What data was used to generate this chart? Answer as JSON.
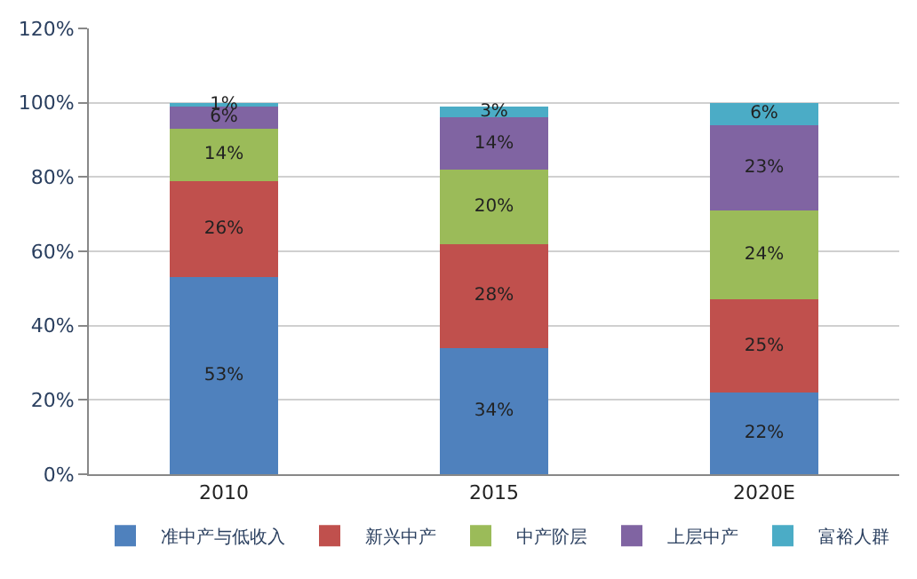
{
  "chart_data": {
    "type": "bar",
    "stacked": true,
    "categories": [
      "2010",
      "2015",
      "2020E"
    ],
    "series": [
      {
        "name": "准中产与低收入",
        "color": "#4f81bd",
        "values": [
          53,
          34,
          22
        ],
        "value_labels": [
          "53%",
          "34%",
          "22%"
        ]
      },
      {
        "name": "新兴中产",
        "color": "#c0504d",
        "values": [
          26,
          28,
          25
        ],
        "value_labels": [
          "26%",
          "28%",
          "25%"
        ]
      },
      {
        "name": "中产阶层",
        "color": "#9bbb59",
        "values": [
          14,
          20,
          24
        ],
        "value_labels": [
          "14%",
          "20%",
          "24%"
        ]
      },
      {
        "name": "上层中产",
        "color": "#8064a2",
        "values": [
          6,
          14,
          23
        ],
        "value_labels": [
          "6%",
          "14%",
          "23%"
        ]
      },
      {
        "name": "富裕人群",
        "color": "#4bacc6",
        "values": [
          1,
          3,
          6
        ],
        "value_labels": [
          "1%",
          "3%",
          "6%"
        ]
      }
    ],
    "ylim": [
      0,
      120
    ],
    "yticks": [
      {
        "value": 0,
        "label": "0%"
      },
      {
        "value": 20,
        "label": "20%"
      },
      {
        "value": 40,
        "label": "40%"
      },
      {
        "value": 60,
        "label": "60%"
      },
      {
        "value": 80,
        "label": "80%"
      },
      {
        "value": 100,
        "label": "100%"
      },
      {
        "value": 120,
        "label": "120%"
      }
    ],
    "grid": "y",
    "legend": "bottom"
  }
}
